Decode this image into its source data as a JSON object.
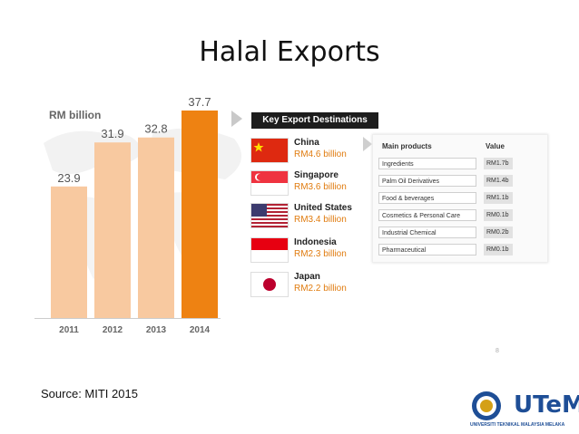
{
  "title": "Halal Exports",
  "source": "Source: MITI 2015",
  "page_number": "8",
  "logo": {
    "text": "UTeM",
    "subtitle": "UNIVERSITI TEKNIKAL MALAYSIA MELAKA"
  },
  "colors": {
    "bar_light": "#f8c9a0",
    "bar_highlight": "#ee8212",
    "accent": "#e07c10"
  },
  "chart_data": {
    "type": "bar",
    "title": "",
    "ylabel": "RM billion",
    "categories": [
      "2011",
      "2012",
      "2013",
      "2014"
    ],
    "values": [
      23.9,
      31.9,
      32.8,
      37.7
    ],
    "data_labels": [
      "23.9",
      "31.9",
      "32.8",
      "37.7"
    ],
    "highlight_category": "2014",
    "ylim": [
      0,
      40
    ],
    "grid": false,
    "legend": "none"
  },
  "destinations": {
    "heading": "Key Export Destinations",
    "items": [
      {
        "country": "China",
        "value": "RM4.6 billion",
        "flag": "china-flag"
      },
      {
        "country": "Singapore",
        "value": "RM3.6 billion",
        "flag": "singapore-flag"
      },
      {
        "country": "United States",
        "value": "RM3.4 billion",
        "flag": "us-flag"
      },
      {
        "country": "Indonesia",
        "value": "RM2.3 billion",
        "flag": "indonesia-flag"
      },
      {
        "country": "Japan",
        "value": "RM2.2 billion",
        "flag": "japan-flag"
      }
    ]
  },
  "products": {
    "header_product": "Main products",
    "header_value": "Value",
    "rows": [
      {
        "name": "Ingredients",
        "value": "RM1.7b"
      },
      {
        "name": "Palm Oil Derivatives",
        "value": "RM1.4b"
      },
      {
        "name": "Food & beverages",
        "value": "RM1.1b"
      },
      {
        "name": "Cosmetics & Personal Care",
        "value": "RM0.1b"
      },
      {
        "name": "Industrial Chemical",
        "value": "RM0.2b"
      },
      {
        "name": "Pharmaceutical",
        "value": "RM0.1b"
      }
    ]
  }
}
